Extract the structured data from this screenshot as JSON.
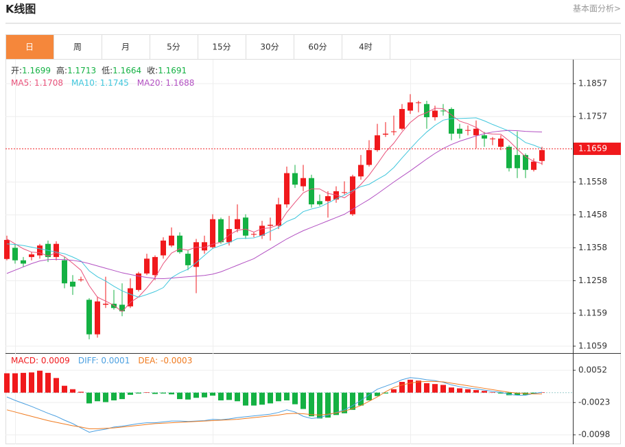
{
  "header": {
    "title": "K线图",
    "link": "基本面分析>"
  },
  "tabs": {
    "items": [
      "日",
      "周",
      "月",
      "5分",
      "15分",
      "30分",
      "60分",
      "4时"
    ],
    "active": "日"
  },
  "chart_data": {
    "type": "candlestick",
    "up_color": "#f0191c",
    "down_color": "#14b143",
    "ohlc_legend": [
      {
        "label": "开:",
        "value": 1.1699
      },
      {
        "label": "高:",
        "value": 1.1713
      },
      {
        "label": "低:",
        "value": 1.1664
      },
      {
        "label": "收:",
        "value": 1.1691
      }
    ],
    "open": [
      1.1324,
      1.1358,
      1.132,
      1.133,
      1.1335,
      1.137,
      1.133,
      1.132,
      1.1255,
      1.126,
      1.12,
      1.1095,
      1.1185,
      1.1188,
      1.1185,
      1.118,
      1.123,
      1.128,
      1.1275,
      1.1335,
      1.1365,
      1.1395,
      1.134,
      1.13,
      1.135,
      1.136,
      1.1445,
      1.1375,
      1.1415,
      1.145,
      1.1398,
      1.1395,
      1.1425,
      1.1425,
      1.149,
      1.1585,
      1.1545,
      1.157,
      1.15,
      1.15,
      1.1505,
      1.1525,
      1.146,
      1.1575,
      1.161,
      1.1655,
      1.1702,
      1.171,
      1.172,
      1.1775,
      1.1798,
      1.1795,
      1.1755,
      1.1775,
      1.178,
      1.172,
      1.1715,
      1.17,
      1.17,
      1.169,
      1.1665,
      1.1665,
      1.164,
      1.164,
      1.1595,
      1.1622
    ],
    "high": [
      1.1395,
      1.137,
      1.133,
      1.1345,
      1.137,
      1.138,
      1.1378,
      1.133,
      1.1275,
      1.127,
      1.1205,
      1.121,
      1.127,
      1.123,
      1.125,
      1.1265,
      1.1285,
      1.134,
      1.1335,
      1.139,
      1.142,
      1.1405,
      1.135,
      1.1385,
      1.1395,
      1.146,
      1.145,
      1.1455,
      1.149,
      1.146,
      1.1405,
      1.144,
      1.145,
      1.151,
      1.1605,
      1.161,
      1.161,
      1.158,
      1.152,
      1.153,
      1.1545,
      1.156,
      1.158,
      1.164,
      1.1685,
      1.1735,
      1.174,
      1.176,
      1.1795,
      1.1825,
      1.1805,
      1.1805,
      1.179,
      1.1795,
      1.1785,
      1.1735,
      1.173,
      1.1745,
      1.171,
      1.1695,
      1.17,
      1.167,
      1.1712,
      1.1645,
      1.163,
      1.1665
    ],
    "low": [
      1.132,
      1.131,
      1.13,
      1.132,
      1.1325,
      1.1315,
      1.132,
      1.1235,
      1.1215,
      1.1255,
      1.108,
      1.1085,
      1.1175,
      1.117,
      1.115,
      1.1175,
      1.1225,
      1.1275,
      1.126,
      1.1325,
      1.136,
      1.134,
      1.129,
      1.122,
      1.134,
      1.1355,
      1.137,
      1.1365,
      1.1405,
      1.1385,
      1.139,
      1.1385,
      1.138,
      1.1415,
      1.148,
      1.154,
      1.153,
      1.148,
      1.1485,
      1.145,
      1.1495,
      1.152,
      1.1455,
      1.1565,
      1.1605,
      1.165,
      1.1695,
      1.17,
      1.1715,
      1.1765,
      1.177,
      1.172,
      1.1745,
      1.176,
      1.1685,
      1.169,
      1.17,
      1.166,
      1.1665,
      1.167,
      1.1655,
      1.159,
      1.157,
      1.157,
      1.159,
      1.161
    ],
    "close": [
      1.1382,
      1.132,
      1.131,
      1.1338,
      1.1365,
      1.133,
      1.137,
      1.125,
      1.124,
      1.1262,
      1.1095,
      1.1195,
      1.1188,
      1.1175,
      1.1165,
      1.1235,
      1.128,
      1.1325,
      1.133,
      1.138,
      1.1395,
      1.1345,
      1.1305,
      1.1375,
      1.1375,
      1.1445,
      1.1375,
      1.1415,
      1.1445,
      1.1395,
      1.14,
      1.1425,
      1.1428,
      1.149,
      1.1585,
      1.155,
      1.157,
      1.149,
      1.149,
      1.1515,
      1.153,
      1.1527,
      1.1575,
      1.161,
      1.1655,
      1.17,
      1.1705,
      1.1712,
      1.178,
      1.18,
      1.18,
      1.1755,
      1.1775,
      1.1773,
      1.1705,
      1.1705,
      1.1716,
      1.172,
      1.169,
      1.169,
      1.169,
      1.16,
      1.16,
      1.1595,
      1.162,
      1.1655
    ],
    "series": [
      {
        "legend": "MA5: 1.1708",
        "color": "#e8517a",
        "values": [
          1.1385,
          1.137,
          1.1355,
          1.1345,
          1.1343,
          1.1333,
          1.1343,
          1.1331,
          1.1311,
          1.129,
          1.1243,
          1.1208,
          1.1196,
          1.1183,
          1.1164,
          1.1192,
          1.1209,
          1.1236,
          1.1267,
          1.131,
          1.1342,
          1.1355,
          1.1351,
          1.136,
          1.1359,
          1.1369,
          1.1375,
          1.1397,
          1.1411,
          1.1415,
          1.1406,
          1.1416,
          1.1419,
          1.1428,
          1.1466,
          1.1496,
          1.1525,
          1.1537,
          1.1537,
          1.1523,
          1.1519,
          1.151,
          1.1527,
          1.1551,
          1.1579,
          1.1613,
          1.1649,
          1.1676,
          1.171,
          1.1739,
          1.1759,
          1.1769,
          1.1782,
          1.1781,
          1.1762,
          1.1743,
          1.1735,
          1.1724,
          1.1707,
          1.1704,
          1.1703,
          1.1683,
          1.1658,
          1.1635,
          1.1621,
          1.1614
        ]
      },
      {
        "legend": "MA10: 1.1745",
        "color": "#3fc6dc",
        "values": [
          1.137,
          1.1368,
          1.1365,
          1.136,
          1.1355,
          1.135,
          1.1345,
          1.134,
          1.133,
          1.1318,
          1.1288,
          1.127,
          1.1257,
          1.1241,
          1.1227,
          1.1217,
          1.1208,
          1.1216,
          1.1225,
          1.1237,
          1.1267,
          1.1282,
          1.1293,
          1.1313,
          1.1335,
          1.1356,
          1.1365,
          1.1374,
          1.1386,
          1.1387,
          1.1388,
          1.1396,
          1.1408,
          1.142,
          1.1438,
          1.1448,
          1.1468,
          1.1476,
          1.1482,
          1.1494,
          1.1507,
          1.1518,
          1.1532,
          1.1544,
          1.1551,
          1.1566,
          1.158,
          1.1602,
          1.1631,
          1.1659,
          1.1686,
          1.171,
          1.173,
          1.1746,
          1.1751,
          1.1751,
          1.1752,
          1.1753,
          1.1744,
          1.1733,
          1.1723,
          1.1713,
          1.1696,
          1.1678,
          1.167,
          1.166
        ]
      },
      {
        "legend": "MA20: 1.1688",
        "color": "#b24fc2",
        "values": [
          1.128,
          1.129,
          1.13,
          1.131,
          1.1318,
          1.1322,
          1.1323,
          1.1322,
          1.132,
          1.1316,
          1.131,
          1.1303,
          1.1296,
          1.1289,
          1.1282,
          1.1277,
          1.1272,
          1.1268,
          1.1265,
          1.1264,
          1.1266,
          1.1268,
          1.127,
          1.1272,
          1.1274,
          1.1278,
          1.1285,
          1.1295,
          1.1305,
          1.1315,
          1.1325,
          1.134,
          1.1355,
          1.137,
          1.1385,
          1.1398,
          1.141,
          1.142,
          1.143,
          1.144,
          1.145,
          1.146,
          1.1475,
          1.149,
          1.1505,
          1.1522,
          1.154,
          1.1558,
          1.1575,
          1.1592,
          1.161,
          1.1628,
          1.1645,
          1.166,
          1.1672,
          1.1682,
          1.169,
          1.1698,
          1.1705,
          1.171,
          1.1713,
          1.1715,
          1.1714,
          1.1712,
          1.1711,
          1.171
        ]
      }
    ],
    "price_line": 1.1659,
    "price_color": "#f0191c",
    "ylim": [
      1.1038,
      1.193
    ],
    "yticks": [
      1.1059,
      1.1159,
      1.1258,
      1.1358,
      1.1458,
      1.1558,
      1.1757,
      1.1857
    ],
    "grid": true,
    "macd": {
      "y2lim": [
        -0.012,
        0.0092
      ],
      "y2ticks": [
        -0.0098,
        -0.0023,
        0.0052
      ],
      "histogram": {
        "legend": "MACD: 0.0009",
        "color": "#f0191c",
        "values": [
          0.0045,
          0.0045,
          0.0046,
          0.0047,
          0.0051,
          0.0046,
          0.0034,
          0.0016,
          0.0008,
          0.0002,
          -0.0025,
          -0.002,
          -0.0022,
          -0.0018,
          -0.0015,
          -0.0005,
          -0.0002,
          0.0001,
          -0.0003,
          -0.0002,
          -0.0004,
          -0.0015,
          -0.0016,
          -0.0012,
          -0.0011,
          -0.0007,
          -0.0018,
          -0.0017,
          -0.002,
          -0.003,
          -0.003,
          -0.0028,
          -0.0025,
          -0.002,
          -0.0018,
          -0.0027,
          -0.0038,
          -0.0055,
          -0.006,
          -0.0058,
          -0.0052,
          -0.0048,
          -0.004,
          -0.003,
          -0.0018,
          -0.0008,
          -0.0002,
          0.0008,
          0.0025,
          0.003,
          0.0028,
          0.0022,
          0.002,
          0.0018,
          0.0012,
          0.001,
          0.0008,
          0.0006,
          0.0004,
          0.0001,
          -0.0002,
          -0.0006,
          -0.0006,
          -0.0005,
          -0.0002,
          0.0001
        ]
      },
      "diff": {
        "legend": "DIFF: 0.0001",
        "color": "#4a9fe0",
        "values": [
          -0.001,
          -0.0018,
          -0.0025,
          -0.0032,
          -0.004,
          -0.0048,
          -0.0055,
          -0.0064,
          -0.0072,
          -0.0082,
          -0.0092,
          -0.0088,
          -0.0085,
          -0.008,
          -0.0078,
          -0.0075,
          -0.0072,
          -0.007,
          -0.007,
          -0.0068,
          -0.0066,
          -0.0066,
          -0.0067,
          -0.0066,
          -0.0065,
          -0.0062,
          -0.0063,
          -0.0061,
          -0.0058,
          -0.0056,
          -0.0054,
          -0.0052,
          -0.005,
          -0.0046,
          -0.004,
          -0.0045,
          -0.0055,
          -0.006,
          -0.0058,
          -0.0052,
          -0.0046,
          -0.004,
          -0.003,
          -0.0018,
          -0.0005,
          0.0008,
          0.0015,
          0.0022,
          0.003,
          0.0035,
          0.0033,
          0.003,
          0.0028,
          0.0024,
          0.0018,
          0.0014,
          0.0011,
          0.0009,
          0.0006,
          0.0003,
          0.0001,
          -0.0004,
          -0.0006,
          -0.0006,
          -0.0002,
          0.0001
        ]
      },
      "dea": {
        "legend": "DEA: -0.0003",
        "color": "#f07a1e",
        "values": [
          -0.004,
          -0.0045,
          -0.005,
          -0.0055,
          -0.006,
          -0.0065,
          -0.0069,
          -0.0073,
          -0.0077,
          -0.008,
          -0.0084,
          -0.0084,
          -0.0083,
          -0.0082,
          -0.008,
          -0.0078,
          -0.0076,
          -0.0074,
          -0.0072,
          -0.0071,
          -0.007,
          -0.0069,
          -0.0068,
          -0.0067,
          -0.0066,
          -0.0065,
          -0.0064,
          -0.0063,
          -0.0062,
          -0.006,
          -0.0058,
          -0.0056,
          -0.0054,
          -0.0052,
          -0.0049,
          -0.0048,
          -0.0049,
          -0.0051,
          -0.0052,
          -0.005,
          -0.0047,
          -0.0043,
          -0.0037,
          -0.003,
          -0.002,
          -0.001,
          0.0002,
          0.0012,
          0.0018,
          0.0022,
          0.0025,
          0.0026,
          0.0026,
          0.0025,
          0.0022,
          0.0019,
          0.0016,
          0.0013,
          0.001,
          0.0007,
          0.0004,
          0.0001,
          -0.0001,
          -0.0002,
          -0.0003,
          -0.0003
        ]
      }
    }
  }
}
